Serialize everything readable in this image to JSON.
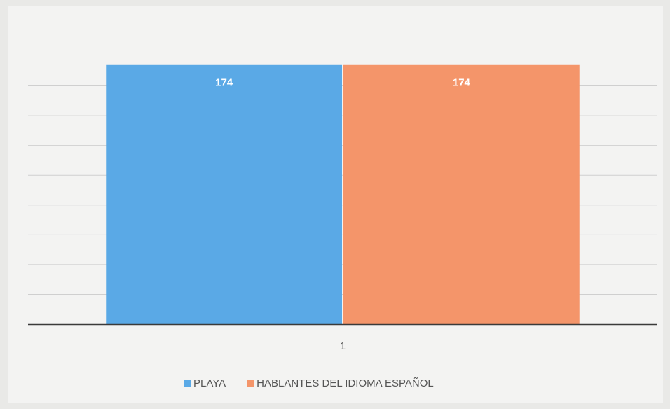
{
  "chart_data": {
    "type": "bar",
    "categories": [
      "1"
    ],
    "series": [
      {
        "name": "PLAYA",
        "color": "#5aa9e6",
        "values": [
          174
        ]
      },
      {
        "name": "HABLANTES DEL IDIOMA ESPAÑOL",
        "color": "#f4956a",
        "values": [
          174
        ]
      }
    ],
    "ylim": [
      0,
      180
    ],
    "yticks": [
      0,
      20,
      40,
      60,
      80,
      100,
      120,
      140,
      160
    ],
    "grid": true
  }
}
